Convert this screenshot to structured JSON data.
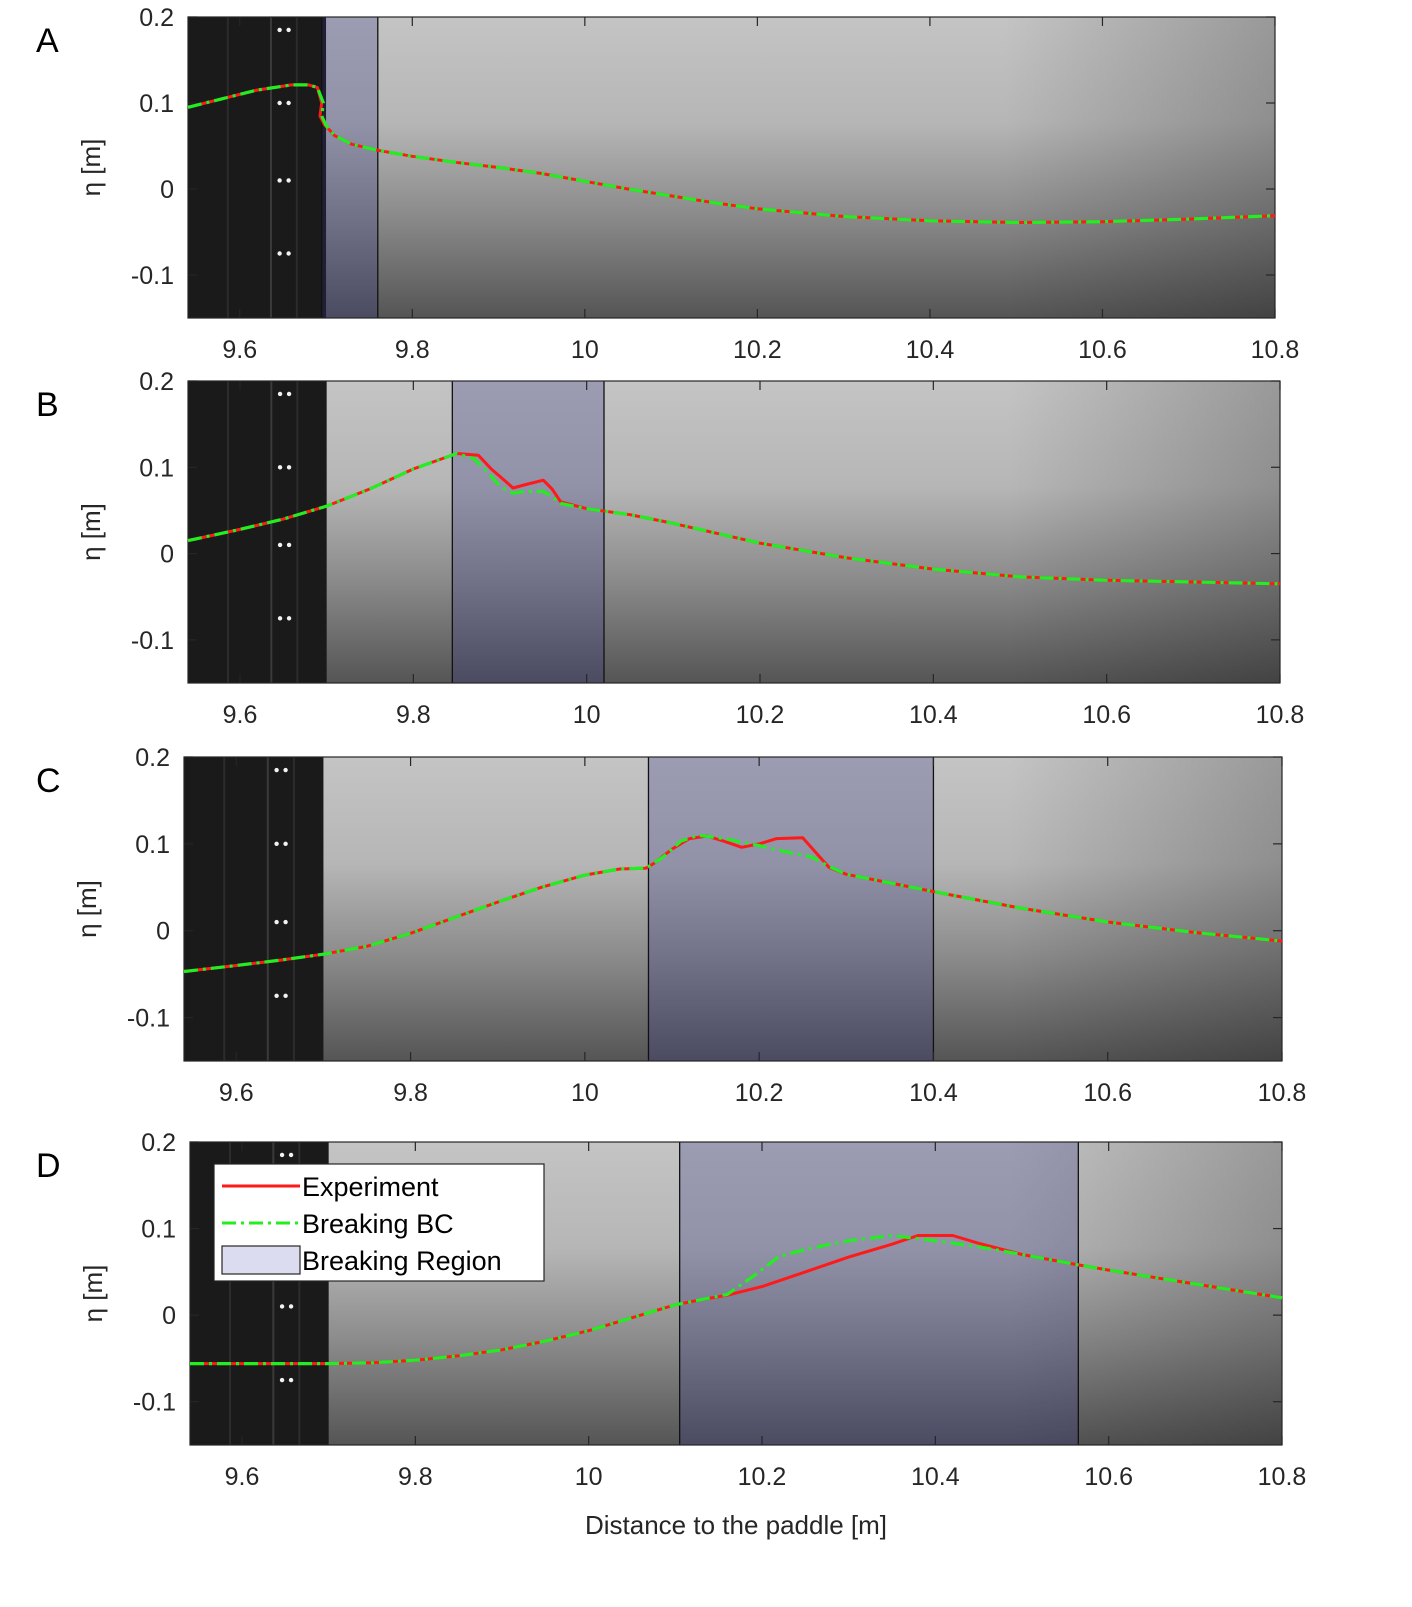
{
  "chart_data": [
    {
      "type": "line",
      "panel_label": "A",
      "xlim": [
        9.54,
        10.8
      ],
      "ylim": [
        -0.15,
        0.2
      ],
      "x_ticks": [
        "9.6",
        "9.8",
        "10",
        "10.2",
        "10.4",
        "10.6",
        "10.8"
      ],
      "y_ticks": [
        "-0.1",
        "0",
        "0.1",
        "0.2"
      ],
      "ylabel": "η [m]",
      "xlabel": "",
      "breaking_region": [
        9.695,
        9.76
      ],
      "series": [
        {
          "name": "Experiment",
          "color": "#ff1a1a",
          "style": "solid",
          "points": [
            [
              9.54,
              0.095
            ],
            [
              9.58,
              0.105
            ],
            [
              9.62,
              0.115
            ],
            [
              9.66,
              0.121
            ],
            [
              9.68,
              0.121
            ],
            [
              9.69,
              0.118
            ],
            [
              9.695,
              0.1
            ],
            [
              9.693,
              0.085
            ],
            [
              9.698,
              0.075
            ],
            [
              9.71,
              0.062
            ],
            [
              9.73,
              0.052
            ],
            [
              9.76,
              0.045
            ],
            [
              9.8,
              0.038
            ],
            [
              9.85,
              0.031
            ],
            [
              9.9,
              0.025
            ],
            [
              9.95,
              0.018
            ],
            [
              10,
              0.009
            ],
            [
              10.05,
              0.0
            ],
            [
              10.1,
              -0.008
            ],
            [
              10.15,
              -0.016
            ],
            [
              10.2,
              -0.023
            ],
            [
              10.3,
              -0.032
            ],
            [
              10.4,
              -0.037
            ],
            [
              10.5,
              -0.039
            ],
            [
              10.6,
              -0.038
            ],
            [
              10.7,
              -0.035
            ],
            [
              10.8,
              -0.031
            ]
          ]
        },
        {
          "name": "Breaking BC",
          "color": "#22ee22",
          "style": "dashdot",
          "points": [
            [
              9.54,
              0.095
            ],
            [
              9.58,
              0.105
            ],
            [
              9.62,
              0.115
            ],
            [
              9.66,
              0.121
            ],
            [
              9.68,
              0.121
            ],
            [
              9.69,
              0.118
            ],
            [
              9.697,
              0.1
            ],
            [
              9.695,
              0.085
            ],
            [
              9.7,
              0.074
            ],
            [
              9.71,
              0.062
            ],
            [
              9.73,
              0.052
            ],
            [
              9.76,
              0.045
            ],
            [
              9.8,
              0.038
            ],
            [
              9.85,
              0.031
            ],
            [
              9.9,
              0.025
            ],
            [
              9.95,
              0.018
            ],
            [
              10,
              0.009
            ],
            [
              10.05,
              0.0
            ],
            [
              10.1,
              -0.008
            ],
            [
              10.15,
              -0.016
            ],
            [
              10.2,
              -0.023
            ],
            [
              10.3,
              -0.032
            ],
            [
              10.4,
              -0.037
            ],
            [
              10.5,
              -0.039
            ],
            [
              10.6,
              -0.038
            ],
            [
              10.7,
              -0.035
            ],
            [
              10.8,
              -0.031
            ]
          ]
        }
      ]
    },
    {
      "type": "line",
      "panel_label": "B",
      "xlim": [
        9.54,
        10.8
      ],
      "ylim": [
        -0.15,
        0.2
      ],
      "x_ticks": [
        "9.6",
        "9.8",
        "10",
        "10.2",
        "10.4",
        "10.6",
        "10.8"
      ],
      "y_ticks": [
        "-0.1",
        "0",
        "0.1",
        "0.2"
      ],
      "ylabel": "η [m]",
      "xlabel": "",
      "breaking_region": [
        9.845,
        10.02
      ],
      "series": [
        {
          "name": "Experiment",
          "color": "#ff1a1a",
          "style": "solid",
          "points": [
            [
              9.54,
              0.015
            ],
            [
              9.6,
              0.028
            ],
            [
              9.65,
              0.04
            ],
            [
              9.7,
              0.055
            ],
            [
              9.75,
              0.075
            ],
            [
              9.8,
              0.098
            ],
            [
              9.85,
              0.116
            ],
            [
              9.875,
              0.114
            ],
            [
              9.89,
              0.098
            ],
            [
              9.905,
              0.085
            ],
            [
              9.915,
              0.076
            ],
            [
              9.93,
              0.08
            ],
            [
              9.95,
              0.085
            ],
            [
              9.96,
              0.075
            ],
            [
              9.97,
              0.06
            ],
            [
              10,
              0.052
            ],
            [
              10.05,
              0.045
            ],
            [
              10.1,
              0.035
            ],
            [
              10.2,
              0.012
            ],
            [
              10.3,
              -0.005
            ],
            [
              10.4,
              -0.018
            ],
            [
              10.5,
              -0.027
            ],
            [
              10.6,
              -0.031
            ],
            [
              10.7,
              -0.033
            ],
            [
              10.8,
              -0.035
            ]
          ]
        },
        {
          "name": "Breaking BC",
          "color": "#22ee22",
          "style": "dashdot",
          "points": [
            [
              9.54,
              0.015
            ],
            [
              9.6,
              0.028
            ],
            [
              9.65,
              0.04
            ],
            [
              9.7,
              0.055
            ],
            [
              9.75,
              0.075
            ],
            [
              9.8,
              0.098
            ],
            [
              9.85,
              0.116
            ],
            [
              9.87,
              0.11
            ],
            [
              9.885,
              0.095
            ],
            [
              9.9,
              0.078
            ],
            [
              9.915,
              0.07
            ],
            [
              9.93,
              0.072
            ],
            [
              9.95,
              0.072
            ],
            [
              9.96,
              0.066
            ],
            [
              9.97,
              0.058
            ],
            [
              10,
              0.052
            ],
            [
              10.05,
              0.045
            ],
            [
              10.1,
              0.035
            ],
            [
              10.2,
              0.012
            ],
            [
              10.3,
              -0.005
            ],
            [
              10.4,
              -0.018
            ],
            [
              10.5,
              -0.027
            ],
            [
              10.6,
              -0.031
            ],
            [
              10.7,
              -0.033
            ],
            [
              10.8,
              -0.035
            ]
          ]
        }
      ]
    },
    {
      "type": "line",
      "panel_label": "C",
      "xlim": [
        9.54,
        10.8
      ],
      "ylim": [
        -0.15,
        0.2
      ],
      "x_ticks": [
        "9.6",
        "9.8",
        "10",
        "10.2",
        "10.4",
        "10.6",
        "10.8"
      ],
      "y_ticks": [
        "-0.1",
        "0",
        "0.1",
        "0.2"
      ],
      "ylabel": "η [m]",
      "xlabel": "",
      "breaking_region": [
        10.073,
        10.4
      ],
      "series": [
        {
          "name": "Experiment",
          "color": "#ff1a1a",
          "style": "solid",
          "points": [
            [
              9.54,
              -0.047
            ],
            [
              9.6,
              -0.04
            ],
            [
              9.65,
              -0.034
            ],
            [
              9.7,
              -0.027
            ],
            [
              9.75,
              -0.018
            ],
            [
              9.8,
              -0.003
            ],
            [
              9.85,
              0.015
            ],
            [
              9.9,
              0.033
            ],
            [
              9.95,
              0.05
            ],
            [
              10,
              0.064
            ],
            [
              10.04,
              0.071
            ],
            [
              10.07,
              0.072
            ],
            [
              10.08,
              0.078
            ],
            [
              10.1,
              0.094
            ],
            [
              10.12,
              0.106
            ],
            [
              10.14,
              0.109
            ],
            [
              10.16,
              0.103
            ],
            [
              10.18,
              0.096
            ],
            [
              10.2,
              0.1
            ],
            [
              10.22,
              0.106
            ],
            [
              10.25,
              0.107
            ],
            [
              10.265,
              0.09
            ],
            [
              10.28,
              0.073
            ],
            [
              10.3,
              0.065
            ],
            [
              10.35,
              0.055
            ],
            [
              10.4,
              0.045
            ],
            [
              10.5,
              0.026
            ],
            [
              10.6,
              0.01
            ],
            [
              10.7,
              -0.002
            ],
            [
              10.8,
              -0.012
            ]
          ]
        },
        {
          "name": "Breaking BC",
          "color": "#22ee22",
          "style": "dashdot",
          "points": [
            [
              9.54,
              -0.047
            ],
            [
              9.6,
              -0.04
            ],
            [
              9.65,
              -0.034
            ],
            [
              9.7,
              -0.027
            ],
            [
              9.75,
              -0.018
            ],
            [
              9.8,
              -0.003
            ],
            [
              9.85,
              0.015
            ],
            [
              9.9,
              0.033
            ],
            [
              9.95,
              0.05
            ],
            [
              10,
              0.064
            ],
            [
              10.04,
              0.071
            ],
            [
              10.07,
              0.072
            ],
            [
              10.09,
              0.085
            ],
            [
              10.11,
              0.103
            ],
            [
              10.13,
              0.11
            ],
            [
              10.16,
              0.106
            ],
            [
              10.2,
              0.098
            ],
            [
              10.23,
              0.091
            ],
            [
              10.26,
              0.085
            ],
            [
              10.28,
              0.074
            ],
            [
              10.3,
              0.065
            ],
            [
              10.35,
              0.055
            ],
            [
              10.4,
              0.045
            ],
            [
              10.5,
              0.026
            ],
            [
              10.6,
              0.01
            ],
            [
              10.7,
              -0.002
            ],
            [
              10.8,
              -0.012
            ]
          ]
        }
      ]
    },
    {
      "type": "line",
      "panel_label": "D",
      "xlim": [
        9.54,
        10.8
      ],
      "ylim": [
        -0.15,
        0.2
      ],
      "x_ticks": [
        "9.6",
        "9.8",
        "10",
        "10.2",
        "10.4",
        "10.6",
        "10.8"
      ],
      "y_ticks": [
        "-0.1",
        "0",
        "0.1",
        "0.2"
      ],
      "ylabel": "η [m]",
      "xlabel": "Distance to the paddle [m]",
      "breaking_region": [
        10.105,
        10.565
      ],
      "series": [
        {
          "name": "Experiment",
          "color": "#ff1a1a",
          "style": "solid",
          "points": [
            [
              9.54,
              -0.056
            ],
            [
              9.6,
              -0.056
            ],
            [
              9.7,
              -0.056
            ],
            [
              9.75,
              -0.055
            ],
            [
              9.8,
              -0.052
            ],
            [
              9.85,
              -0.047
            ],
            [
              9.9,
              -0.04
            ],
            [
              9.95,
              -0.03
            ],
            [
              10,
              -0.018
            ],
            [
              10.05,
              -0.003
            ],
            [
              10.1,
              0.012
            ],
            [
              10.13,
              0.018
            ],
            [
              10.16,
              0.023
            ],
            [
              10.2,
              0.033
            ],
            [
              10.25,
              0.05
            ],
            [
              10.3,
              0.067
            ],
            [
              10.35,
              0.082
            ],
            [
              10.38,
              0.092
            ],
            [
              10.42,
              0.092
            ],
            [
              10.45,
              0.083
            ],
            [
              10.5,
              0.07
            ],
            [
              10.565,
              0.058
            ],
            [
              10.6,
              0.052
            ],
            [
              10.7,
              0.036
            ],
            [
              10.8,
              0.02
            ]
          ]
        },
        {
          "name": "Breaking BC",
          "color": "#22ee22",
          "style": "dashdot",
          "points": [
            [
              9.54,
              -0.056
            ],
            [
              9.6,
              -0.056
            ],
            [
              9.7,
              -0.056
            ],
            [
              9.75,
              -0.055
            ],
            [
              9.8,
              -0.052
            ],
            [
              9.85,
              -0.047
            ],
            [
              9.9,
              -0.04
            ],
            [
              9.95,
              -0.03
            ],
            [
              10,
              -0.018
            ],
            [
              10.05,
              -0.003
            ],
            [
              10.1,
              0.012
            ],
            [
              10.13,
              0.018
            ],
            [
              10.16,
              0.024
            ],
            [
              10.19,
              0.045
            ],
            [
              10.22,
              0.068
            ],
            [
              10.26,
              0.078
            ],
            [
              10.3,
              0.086
            ],
            [
              10.35,
              0.092
            ],
            [
              10.4,
              0.086
            ],
            [
              10.45,
              0.079
            ],
            [
              10.5,
              0.07
            ],
            [
              10.565,
              0.058
            ],
            [
              10.6,
              0.052
            ],
            [
              10.7,
              0.036
            ],
            [
              10.8,
              0.02
            ]
          ]
        }
      ],
      "legend": {
        "placement": "top-left",
        "entries": [
          {
            "label": "Experiment",
            "kind": "line",
            "color": "#ff1a1a",
            "style": "solid"
          },
          {
            "label": "Breaking BC",
            "kind": "line",
            "color": "#22ee22",
            "style": "dashdot"
          },
          {
            "label": "Breaking Region",
            "kind": "patch",
            "color": "#dcdcf0"
          }
        ]
      }
    }
  ]
}
